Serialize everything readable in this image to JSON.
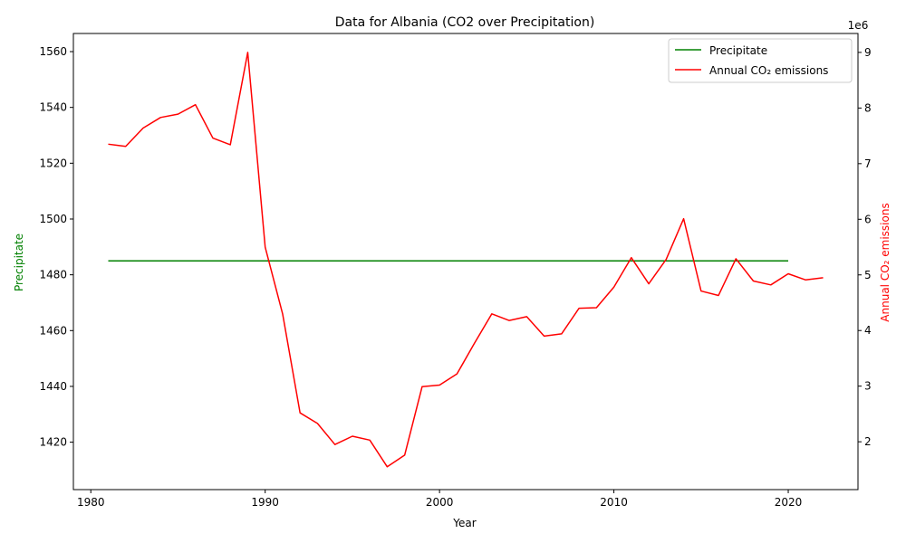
{
  "chart_data": {
    "type": "line",
    "title": "Data for Albania (CO2 over Precipitation)",
    "xlabel": "Year",
    "ylabel_left": "Precipitate",
    "ylabel_right": "Annual CO₂ emissions",
    "right_axis_multiplier": "1e6",
    "xlim": [
      1979,
      2024
    ],
    "ylim_left": [
      1403,
      1566.5
    ],
    "ylim_right": [
      1140000,
      9340000
    ],
    "x_ticks": [
      "1980",
      "1990",
      "2000",
      "2010",
      "2020"
    ],
    "y_left_ticks": [
      "1420",
      "1440",
      "1460",
      "1480",
      "1500",
      "1520",
      "1540",
      "1560"
    ],
    "y_right_ticks": [
      "2",
      "3",
      "4",
      "5",
      "6",
      "7",
      "8",
      "9"
    ],
    "legend_position": "top-right",
    "grid": false,
    "colors": {
      "precipitate": "#008000",
      "co2": "#ff0000"
    },
    "series": [
      {
        "name": "Precipitate",
        "axis": "left",
        "x": [
          1981,
          2020
        ],
        "y": [
          1485,
          1485
        ]
      },
      {
        "name": "Annual CO₂ emissions",
        "axis": "right",
        "x": [
          1981,
          1982,
          1983,
          1984,
          1985,
          1986,
          1987,
          1988,
          1989,
          1990,
          1991,
          1992,
          1993,
          1994,
          1995,
          1996,
          1997,
          1998,
          1999,
          2000,
          2001,
          2002,
          2003,
          2004,
          2005,
          2006,
          2007,
          2008,
          2009,
          2010,
          2011,
          2012,
          2013,
          2014,
          2015,
          2016,
          2017,
          2018,
          2019,
          2020,
          2021,
          2022
        ],
        "y": [
          7350000,
          7310000,
          7640000,
          7830000,
          7890000,
          8060000,
          7460000,
          7340000,
          9000000,
          5500000,
          4300000,
          2520000,
          2330000,
          1950000,
          2100000,
          2030000,
          1550000,
          1760000,
          2990000,
          3020000,
          3220000,
          3770000,
          4300000,
          4180000,
          4250000,
          3900000,
          3940000,
          4400000,
          4410000,
          4780000,
          5310000,
          4840000,
          5280000,
          6010000,
          4710000,
          4630000,
          5290000,
          4890000,
          4820000,
          5020000,
          4910000,
          4950000
        ]
      }
    ]
  }
}
